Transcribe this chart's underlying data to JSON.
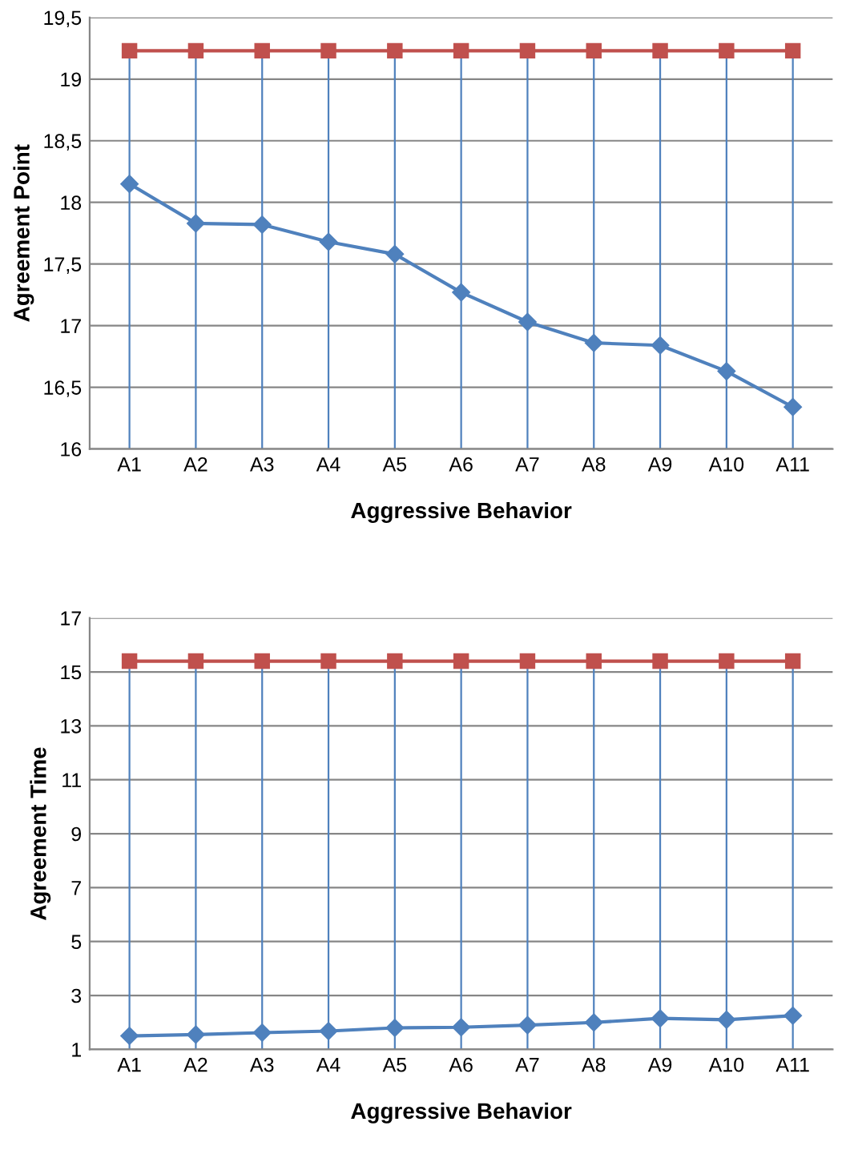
{
  "chart_data": [
    {
      "type": "line",
      "xlabel": "Aggressive Behavior",
      "ylabel": "Agreement Point",
      "categories": [
        "A1",
        "A2",
        "A3",
        "A4",
        "A5",
        "A6",
        "A7",
        "A8",
        "A9",
        "A10",
        "A11"
      ],
      "series": [
        {
          "color": "#4f81bd",
          "marker": "diamond",
          "values": [
            18.15,
            17.83,
            17.82,
            17.68,
            17.58,
            17.27,
            17.03,
            16.86,
            16.84,
            16.63,
            16.34
          ]
        },
        {
          "color": "#c0504d",
          "marker": "square",
          "values": [
            19.23,
            19.23,
            19.23,
            19.23,
            19.23,
            19.23,
            19.23,
            19.23,
            19.23,
            19.23,
            19.23
          ],
          "errors": [
            [
              16,
              19.23
            ],
            [
              16,
              19.23
            ],
            [
              16,
              19.23
            ],
            [
              16,
              19.23
            ],
            [
              16,
              19.23
            ],
            [
              16,
              19.23
            ],
            [
              16,
              19.23
            ],
            [
              16,
              19.23
            ],
            [
              16,
              19.23
            ],
            [
              16,
              19.23
            ],
            [
              16,
              19.23
            ]
          ]
        }
      ],
      "ylim": [
        16,
        19.5
      ],
      "yticks": [
        16,
        {
          "value": 16.5,
          "label": "16,5"
        },
        17,
        {
          "value": 17.5,
          "label": "17,5"
        },
        18,
        {
          "value": 18.5,
          "label": "18,5"
        },
        19,
        {
          "value": 19.5,
          "label": "19,5"
        }
      ],
      "grid": "y",
      "legend": false
    },
    {
      "type": "line",
      "xlabel": "Aggressive Behavior",
      "ylabel": "Agreement Time",
      "categories": [
        "A1",
        "A2",
        "A3",
        "A4",
        "A5",
        "A6",
        "A7",
        "A8",
        "A9",
        "A10",
        "A11"
      ],
      "series": [
        {
          "color": "#4f81bd",
          "marker": "diamond",
          "values": [
            1.5,
            1.55,
            1.62,
            1.68,
            1.8,
            1.82,
            1.9,
            2.0,
            2.15,
            2.1,
            2.25
          ]
        },
        {
          "color": "#c0504d",
          "marker": "square",
          "values": [
            15.4,
            15.4,
            15.4,
            15.4,
            15.4,
            15.4,
            15.4,
            15.4,
            15.4,
            15.4,
            15.4
          ],
          "errors": [
            [
              1,
              15.4
            ],
            [
              1,
              15.4
            ],
            [
              1,
              15.4
            ],
            [
              1,
              15.4
            ],
            [
              1,
              15.4
            ],
            [
              1,
              15.4
            ],
            [
              1,
              15.4
            ],
            [
              1,
              15.4
            ],
            [
              1,
              15.4
            ],
            [
              1,
              15.4
            ],
            [
              1,
              15.4
            ]
          ]
        }
      ],
      "ylim": [
        1,
        17
      ],
      "yticks": [
        1,
        3,
        5,
        7,
        9,
        11,
        13,
        15,
        17
      ],
      "grid": "y",
      "legend": false
    }
  ]
}
